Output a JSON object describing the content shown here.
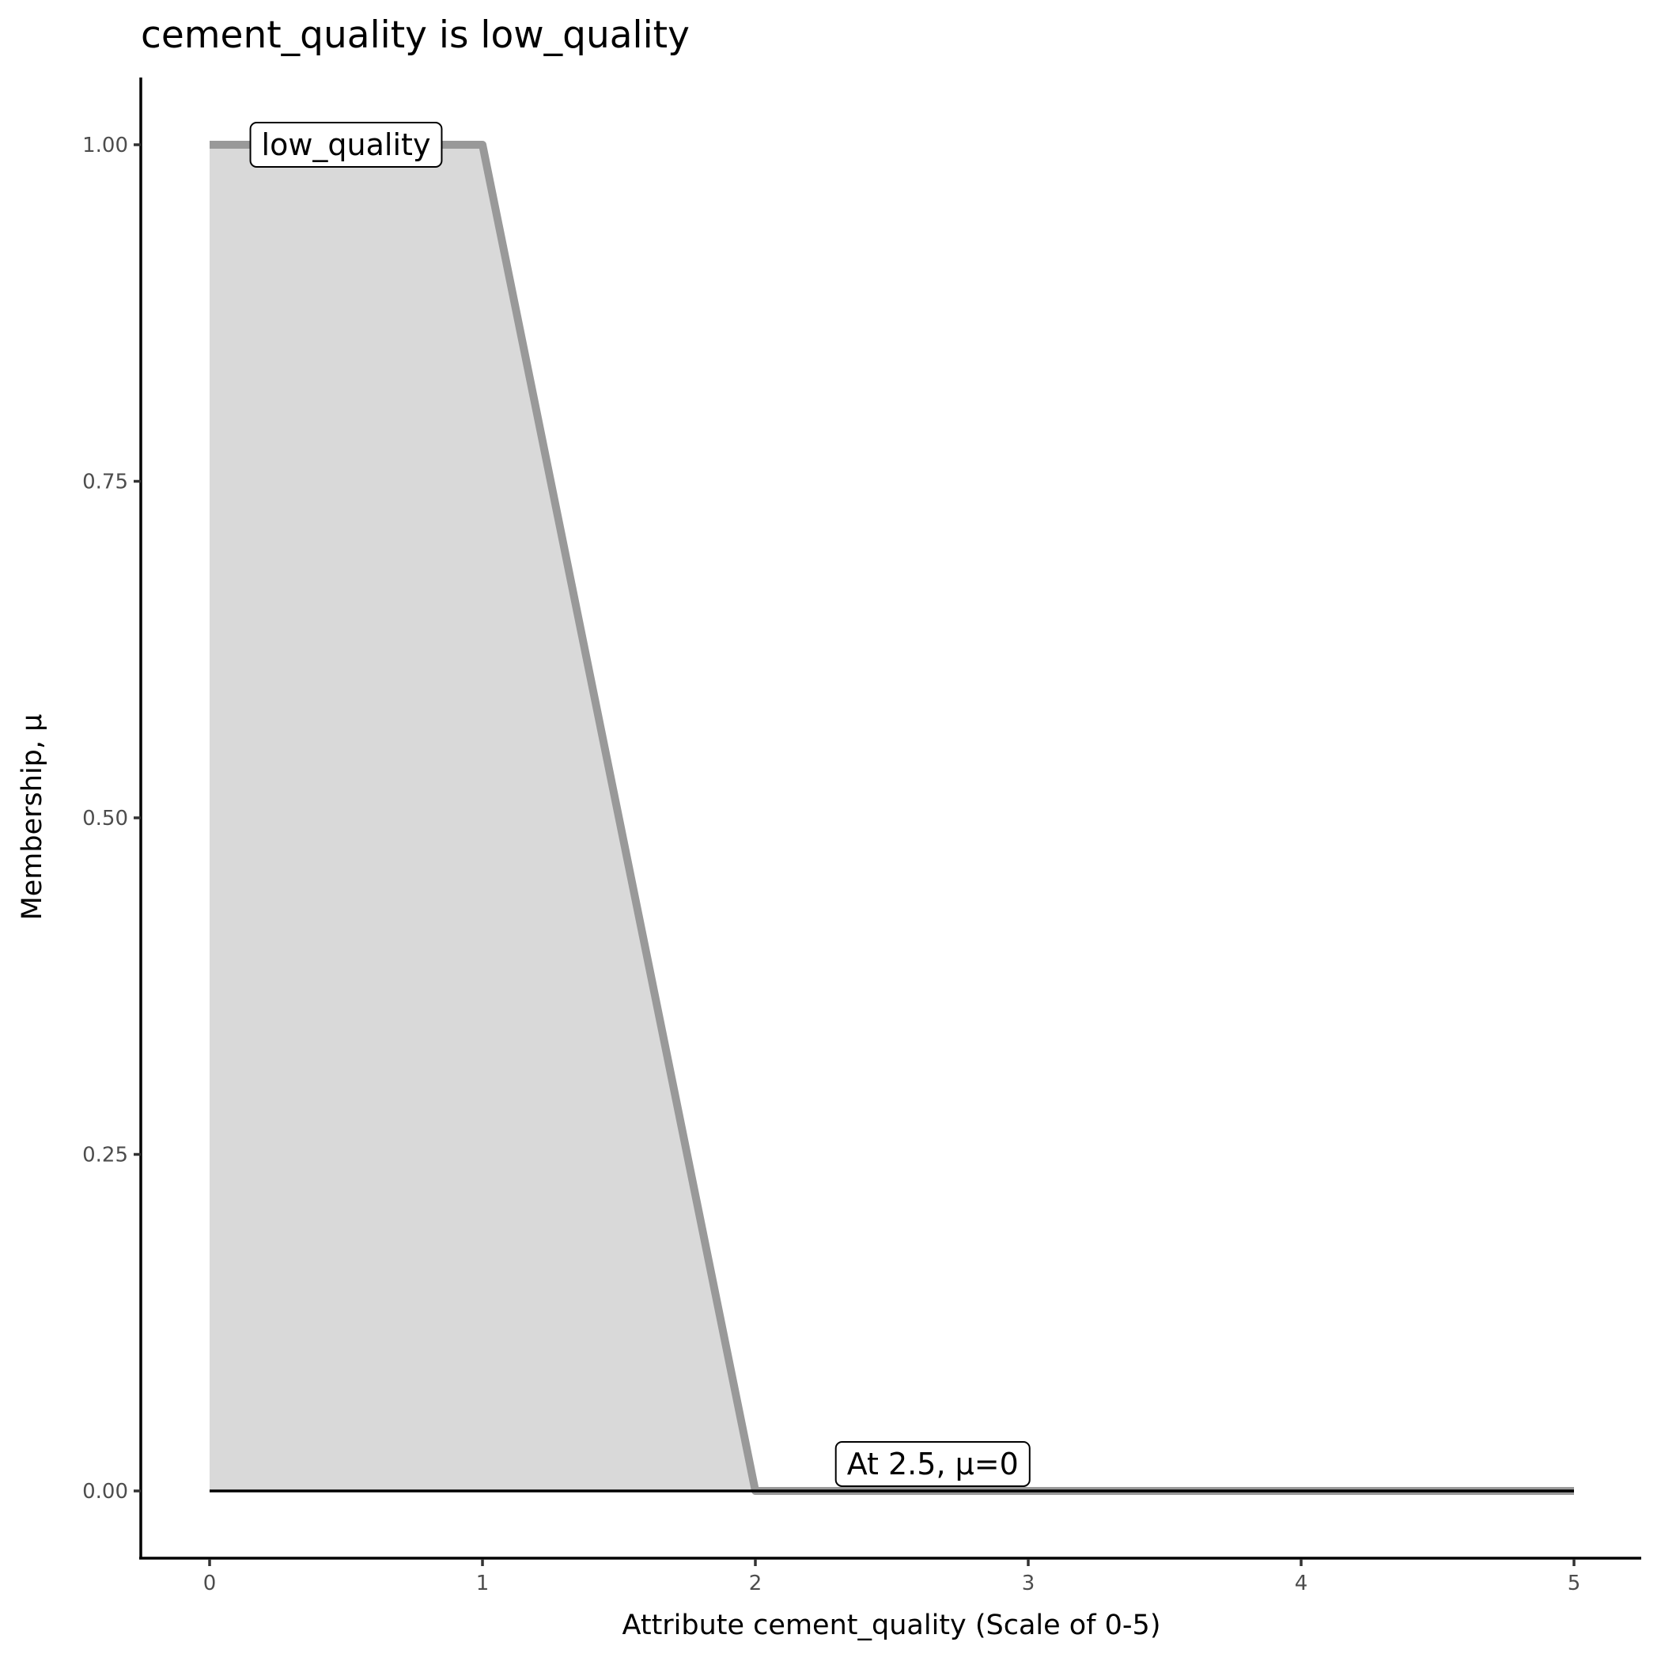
{
  "chart_data": {
    "type": "area",
    "title": "cement_quality is low_quality",
    "xlabel": "Attribute cement_quality (Scale of 0-5)",
    "ylabel": "Membership, μ",
    "xlim": [
      -0.25,
      5.25
    ],
    "ylim": [
      -0.05,
      1.05
    ],
    "x_ticks": [
      "0",
      "1",
      "2",
      "3",
      "4",
      "5"
    ],
    "y_ticks": [
      "0.00",
      "0.25",
      "0.50",
      "0.75",
      "1.00"
    ],
    "grid": false,
    "series": [
      {
        "name": "low_quality",
        "x": [
          0,
          1,
          2,
          5
        ],
        "y": [
          1,
          1,
          0,
          0
        ],
        "color": "#999999",
        "fill": "#d9d9d9"
      }
    ],
    "reference_line": {
      "x": [
        0,
        5
      ],
      "y": [
        0,
        0
      ],
      "color": "#000000"
    },
    "annotations": [
      {
        "text": "low_quality",
        "x": 0.5,
        "y": 1.0
      },
      {
        "text": "At 2.5, μ=0",
        "x": 2.65,
        "y": 0.02
      }
    ]
  }
}
